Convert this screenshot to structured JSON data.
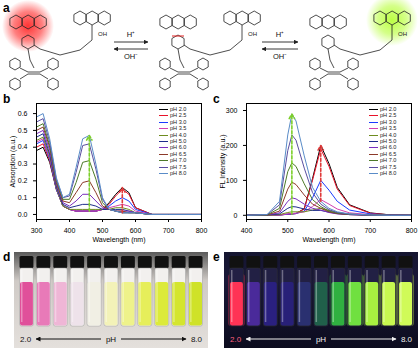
{
  "panel_labels": [
    "a",
    "b",
    "c",
    "d",
    "e"
  ],
  "diagram": {
    "arrows": [
      {
        "forward": "H⁺",
        "backward": "OH⁻"
      },
      {
        "forward": "H⁺",
        "backward": "OH⁻"
      }
    ],
    "atom_labels": [
      "OH",
      "OH",
      "OH"
    ]
  },
  "chart_data": [
    {
      "type": "line",
      "xlabel": "Wavelength (nm)",
      "ylabel": "Absorption (a.u.)",
      "x": [
        300,
        320,
        340,
        360,
        380,
        400,
        420,
        440,
        460,
        480,
        500,
        520,
        540,
        560,
        580,
        600,
        650,
        700,
        750,
        800
      ],
      "xlim": [
        300,
        800
      ],
      "xticks": [
        300,
        400,
        500,
        600,
        700,
        800
      ],
      "ylim": [
        -0.03,
        0.66
      ],
      "yticks": [
        {
          "value": 0,
          "label": "0.0"
        },
        0.1,
        0.2,
        0.3,
        0.4,
        0.5,
        0.6
      ],
      "grid": false,
      "legend": "top-right",
      "series": [
        {
          "name": "pH 2.0",
          "color": "#000000",
          "values": [
            0.38,
            0.4,
            0.31,
            0.15,
            0.05,
            0.03,
            0.02,
            0.02,
            0.02,
            0.02,
            0.03,
            0.07,
            0.12,
            0.16,
            0.13,
            0.04,
            0,
            0,
            0,
            0
          ]
        },
        {
          "name": "pH 2.5",
          "color": "#e8132a",
          "values": [
            0.4,
            0.42,
            0.32,
            0.15,
            0.05,
            0.03,
            0.02,
            0.02,
            0.02,
            0.02,
            0.03,
            0.06,
            0.11,
            0.15,
            0.12,
            0.04,
            0,
            0,
            0,
            0
          ]
        },
        {
          "name": "pH 3.0",
          "color": "#1a3cff",
          "values": [
            0.42,
            0.44,
            0.33,
            0.15,
            0.05,
            0.03,
            0.02,
            0.02,
            0.02,
            0.02,
            0.03,
            0.05,
            0.08,
            0.1,
            0.08,
            0.03,
            0,
            0,
            0,
            0
          ]
        },
        {
          "name": "pH 3.5",
          "color": "#d23fb0",
          "values": [
            0.43,
            0.45,
            0.34,
            0.16,
            0.05,
            0.03,
            0.02,
            0.02,
            0.02,
            0.02,
            0.03,
            0.04,
            0.05,
            0.06,
            0.05,
            0.02,
            0,
            0,
            0,
            0
          ]
        },
        {
          "name": "pH 4.0",
          "color": "#6e8c1f",
          "values": [
            0.44,
            0.46,
            0.35,
            0.16,
            0.05,
            0.03,
            0.03,
            0.03,
            0.03,
            0.03,
            0.03,
            0.03,
            0.04,
            0.04,
            0.03,
            0.01,
            0,
            0,
            0,
            0
          ]
        },
        {
          "name": "pH 5.0",
          "color": "#1e2d8c",
          "values": [
            0.46,
            0.48,
            0.36,
            0.17,
            0.06,
            0.04,
            0.05,
            0.06,
            0.06,
            0.05,
            0.03,
            0.03,
            0.03,
            0.03,
            0.02,
            0.01,
            0,
            0,
            0,
            0
          ]
        },
        {
          "name": "pH 6.0",
          "color": "#7b2fbf",
          "values": [
            0.48,
            0.5,
            0.38,
            0.18,
            0.07,
            0.05,
            0.08,
            0.12,
            0.12,
            0.08,
            0.04,
            0.03,
            0.02,
            0.02,
            0.02,
            0.01,
            0,
            0,
            0,
            0
          ]
        },
        {
          "name": "pH 6.5",
          "color": "#8c3a2a",
          "values": [
            0.5,
            0.52,
            0.4,
            0.19,
            0.08,
            0.07,
            0.13,
            0.19,
            0.2,
            0.13,
            0.05,
            0.03,
            0.02,
            0.02,
            0.01,
            0.01,
            0,
            0,
            0,
            0
          ]
        },
        {
          "name": "pH 7.0",
          "color": "#4d7a28",
          "values": [
            0.52,
            0.54,
            0.41,
            0.2,
            0.09,
            0.09,
            0.19,
            0.31,
            0.32,
            0.21,
            0.07,
            0.03,
            0.02,
            0.01,
            0.01,
            0.01,
            0,
            0,
            0,
            0
          ]
        },
        {
          "name": "pH 7.5",
          "color": "#5a4ea0",
          "values": [
            0.55,
            0.57,
            0.43,
            0.21,
            0.1,
            0.11,
            0.25,
            0.41,
            0.42,
            0.27,
            0.09,
            0.03,
            0.02,
            0.01,
            0.01,
            0.01,
            0,
            0,
            0,
            0
          ]
        },
        {
          "name": "pH 8.0",
          "color": "#5a8cc8",
          "values": [
            0.58,
            0.6,
            0.45,
            0.22,
            0.1,
            0.12,
            0.28,
            0.45,
            0.47,
            0.3,
            0.1,
            0.03,
            0.02,
            0.01,
            0.01,
            0.01,
            0,
            0,
            0,
            0
          ]
        }
      ]
    },
    {
      "type": "line",
      "xlabel": "Wavelength (nm)",
      "ylabel": "FL Intensity (a.u.)",
      "x": [
        400,
        450,
        480,
        500,
        510,
        520,
        540,
        560,
        580,
        600,
        620,
        650,
        700,
        750,
        800
      ],
      "xlim": [
        400,
        800
      ],
      "xticks": [
        400,
        500,
        600,
        700,
        800
      ],
      "ylim": [
        -12,
        320
      ],
      "yticks": [
        0,
        100,
        200,
        300
      ],
      "grid": false,
      "legend": "top-right",
      "series": [
        {
          "name": "pH 2.0",
          "color": "#000000",
          "values": [
            0,
            0,
            1,
            3,
            4,
            5,
            19,
            105,
            200,
            148,
            80,
            30,
            7,
            1,
            0
          ]
        },
        {
          "name": "pH 2.5",
          "color": "#e8132a",
          "values": [
            0,
            0,
            1,
            3,
            4,
            5,
            18,
            100,
            190,
            140,
            75,
            28,
            6,
            1,
            0
          ]
        },
        {
          "name": "pH 3.0",
          "color": "#1a3cff",
          "values": [
            0,
            0,
            1,
            3,
            4,
            5,
            12,
            50,
            100,
            72,
            40,
            15,
            4,
            1,
            0
          ]
        },
        {
          "name": "pH 3.5",
          "color": "#d23fb0",
          "values": [
            0,
            0,
            1,
            4,
            5,
            6,
            10,
            25,
            45,
            32,
            18,
            7,
            2,
            0,
            0
          ]
        },
        {
          "name": "pH 4.0",
          "color": "#6e8c1f",
          "values": [
            0,
            0,
            2,
            8,
            10,
            10,
            10,
            15,
            20,
            14,
            8,
            3,
            1,
            0,
            0
          ]
        },
        {
          "name": "pH 5.0",
          "color": "#1e2d8c",
          "values": [
            0,
            1,
            4,
            20,
            25,
            24,
            18,
            14,
            14,
            9,
            5,
            2,
            0,
            0,
            0
          ]
        },
        {
          "name": "pH 6.0",
          "color": "#7b2fbf",
          "values": [
            0,
            1,
            7,
            40,
            50,
            47,
            32,
            20,
            15,
            8,
            4,
            2,
            0,
            0,
            0
          ]
        },
        {
          "name": "pH 6.5",
          "color": "#8c3a2a",
          "values": [
            0,
            1,
            12,
            75,
            95,
            88,
            58,
            32,
            20,
            10,
            5,
            2,
            1,
            0,
            0
          ]
        },
        {
          "name": "pH 7.0",
          "color": "#4d7a28",
          "values": [
            0,
            1,
            20,
            125,
            150,
            140,
            90,
            45,
            25,
            12,
            6,
            3,
            1,
            0,
            0
          ]
        },
        {
          "name": "pH 7.5",
          "color": "#5a4ea0",
          "values": [
            0,
            2,
            30,
            185,
            230,
            215,
            135,
            65,
            32,
            16,
            8,
            3,
            1,
            0,
            0
          ]
        },
        {
          "name": "pH 8.0",
          "color": "#5a8cc8",
          "values": [
            0,
            2,
            40,
            230,
            290,
            270,
            170,
            80,
            40,
            20,
            10,
            4,
            1,
            0,
            0
          ]
        }
      ]
    }
  ],
  "photos": [
    {
      "start": "2.0",
      "end": "8.0",
      "label": "pH"
    },
    {
      "start": "2.0",
      "end": "8.0",
      "label": "pH"
    }
  ]
}
